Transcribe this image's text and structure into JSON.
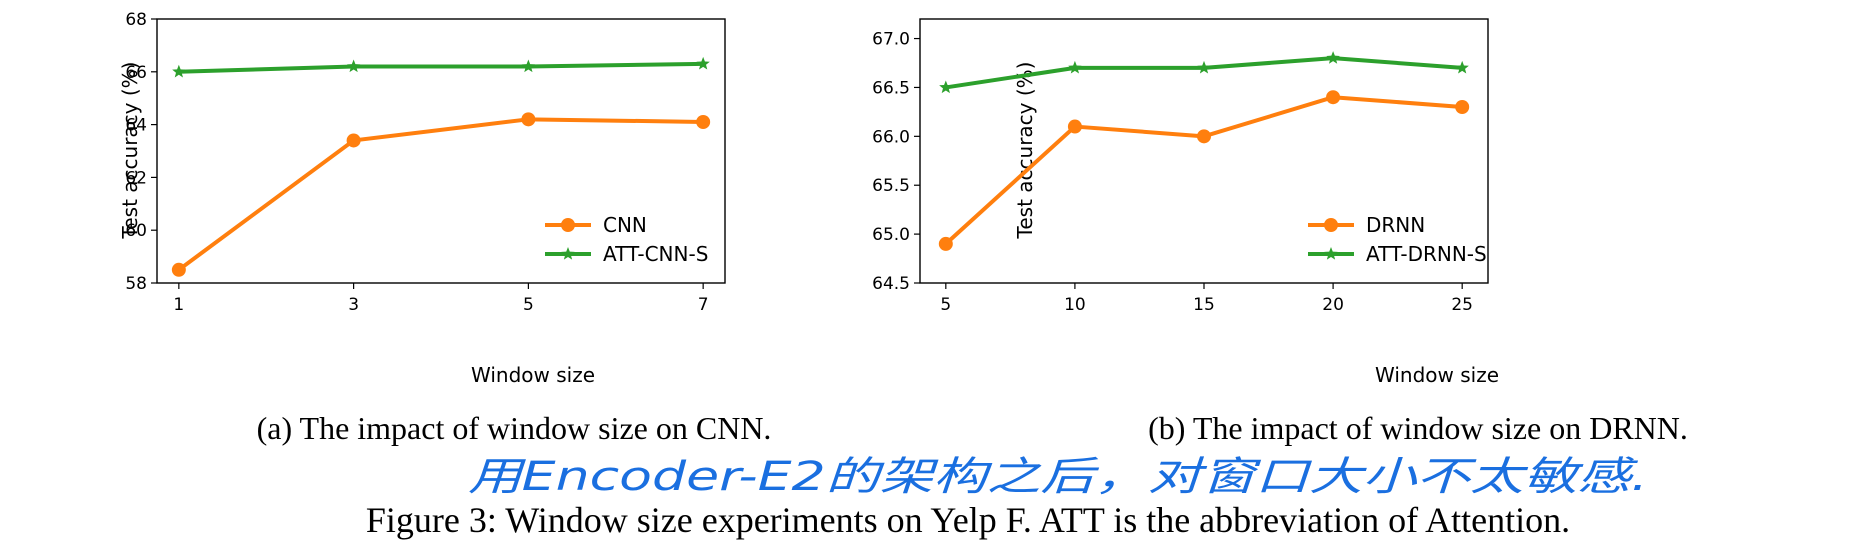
{
  "chart_data": [
    {
      "type": "line",
      "title": "",
      "xlabel": "Window size",
      "ylabel": "Test accuracy (%)",
      "x": [
        1,
        3,
        5,
        7
      ],
      "xticks": [
        "1",
        "3",
        "5",
        "7"
      ],
      "yticks": [
        "58",
        "60",
        "62",
        "64",
        "66",
        "68"
      ],
      "xlim": [
        0.75,
        7.25
      ],
      "ylim": [
        58,
        68
      ],
      "legend_position": "bottom-right",
      "series": [
        {
          "name": "CNN",
          "values": [
            58.5,
            63.4,
            64.2,
            64.1
          ],
          "color": "#ff7f0e",
          "marker": "circle"
        },
        {
          "name": "ATT-CNN-S",
          "values": [
            66.0,
            66.2,
            66.2,
            66.3
          ],
          "color": "#2ca02c",
          "marker": "star"
        }
      ]
    },
    {
      "type": "line",
      "title": "",
      "xlabel": "Window size",
      "ylabel": "Test accuracy (%)",
      "x": [
        5,
        10,
        15,
        20,
        25
      ],
      "xticks": [
        "5",
        "10",
        "15",
        "20",
        "25"
      ],
      "yticks": [
        "64.5",
        "65.0",
        "65.5",
        "66.0",
        "66.5",
        "67.0"
      ],
      "xlim": [
        4,
        26
      ],
      "ylim": [
        64.5,
        67.2
      ],
      "legend_position": "bottom-right",
      "series": [
        {
          "name": "DRNN",
          "values": [
            64.9,
            66.1,
            66.0,
            66.4,
            66.3
          ],
          "color": "#ff7f0e",
          "marker": "circle"
        },
        {
          "name": "ATT-DRNN-S",
          "values": [
            66.5,
            66.7,
            66.7,
            66.8,
            66.7
          ],
          "color": "#2ca02c",
          "marker": "star"
        }
      ]
    }
  ],
  "captions": {
    "left": "(a) The impact of window size on CNN.",
    "right": "(b) The impact of window size on DRNN.",
    "handwritten_note": "用Encoder-E2的架构之后，对窗口大小不太敏感.",
    "figure": "Figure 3: Window size experiments on Yelp F. ATT is the abbreviation of Attention."
  }
}
